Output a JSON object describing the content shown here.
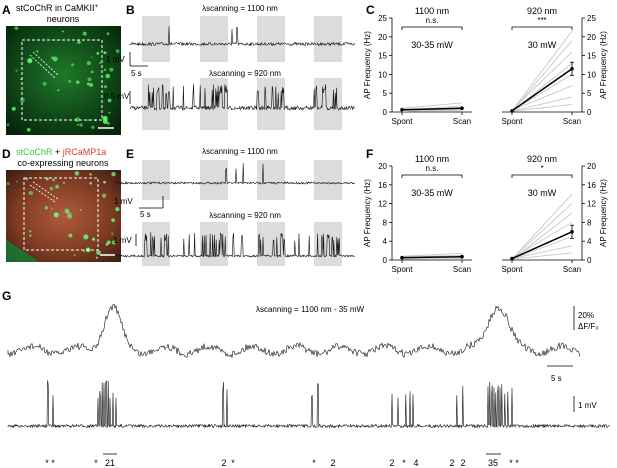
{
  "figure": {
    "panel_letters": [
      "A",
      "B",
      "C",
      "D",
      "E",
      "F",
      "G"
    ],
    "A": {
      "caption_line1": "stCoChR in CaMKII",
      "caption_sup": "+",
      "caption_line2": "neurons"
    },
    "B": {
      "label_top": "λscanning = 1100 nm",
      "label_bottom": "λscanning = 920 nm",
      "scale_top": "1 mV",
      "scale_time": "5 s",
      "scale_bottom": "0.5 mV"
    },
    "C": {
      "left": {
        "title": "1100 nm",
        "sig": "n.s.",
        "power": "30-35 mW"
      },
      "right": {
        "title": "920 nm",
        "sig": "***",
        "power": "30 mW"
      },
      "ylabel": "AP Frequency (Hz)",
      "yticks": [
        "0",
        "5",
        "10",
        "15",
        "20",
        "25"
      ],
      "xticks": [
        "Spont",
        "Scan"
      ]
    },
    "D": {
      "caption_green": "stCoChR",
      "caption_plus": " + ",
      "caption_red": "jRCaMP1a",
      "caption_line2": "co-expressing neurons"
    },
    "E": {
      "label_top": "λscanning = 1100 nm",
      "label_bottom": "λscanning = 920 nm",
      "scale_top": "1 mV",
      "scale_time": "5 s",
      "scale_bottom": "1 mV"
    },
    "F": {
      "left": {
        "title": "1100 nm",
        "sig": "n.s.",
        "power": "30-35 mW"
      },
      "right": {
        "title": "920 nm",
        "sig": "*",
        "power": "30 mW"
      },
      "ylabel": "AP Frequency (Hz)",
      "yticks": [
        "0",
        "4",
        "8",
        "12",
        "16",
        "20"
      ],
      "xticks": [
        "Spont",
        "Scan"
      ]
    },
    "G": {
      "label": "λscanning = 1100 nm - 35 mW",
      "scale_df": "20%",
      "scale_df2": "ΔF/F₀",
      "scale_time": "5 s",
      "scale_mv": "1 mV",
      "bottom_marks": [
        "* *",
        "*",
        "21",
        "2",
        "*",
        "*",
        "2",
        "2",
        "*",
        "4",
        "2",
        "2",
        "35",
        "* *"
      ]
    },
    "colors": {
      "green": "#2fcf3a",
      "red": "#e03a2a",
      "shade": "#dcdcdc"
    }
  },
  "chart_data": [
    {
      "type": "line",
      "panel": "C-left",
      "title": "1100 nm",
      "ylabel": "AP Frequency (Hz)",
      "categories": [
        "Spont",
        "Scan"
      ],
      "ylim": [
        0,
        25
      ],
      "series": [
        {
          "values": [
            0.6,
            1.0
          ]
        }
      ]
    },
    {
      "type": "line",
      "panel": "C-right",
      "title": "920 nm",
      "ylabel": "AP Frequency (Hz)",
      "categories": [
        "Spont",
        "Scan"
      ],
      "ylim": [
        0,
        25
      ],
      "series": [
        {
          "values": [
            0.3,
            11.5
          ]
        }
      ]
    },
    {
      "type": "line",
      "panel": "F-left",
      "title": "1100 nm",
      "ylabel": "AP Frequency (Hz)",
      "categories": [
        "Spont",
        "Scan"
      ],
      "ylim": [
        0,
        20
      ],
      "series": [
        {
          "values": [
            0.5,
            0.7
          ]
        }
      ]
    },
    {
      "type": "line",
      "panel": "F-right",
      "title": "920 nm",
      "ylabel": "AP Frequency (Hz)",
      "categories": [
        "Spont",
        "Scan"
      ],
      "ylim": [
        0,
        20
      ],
      "series": [
        {
          "values": [
            0.3,
            6.0
          ]
        }
      ]
    }
  ]
}
